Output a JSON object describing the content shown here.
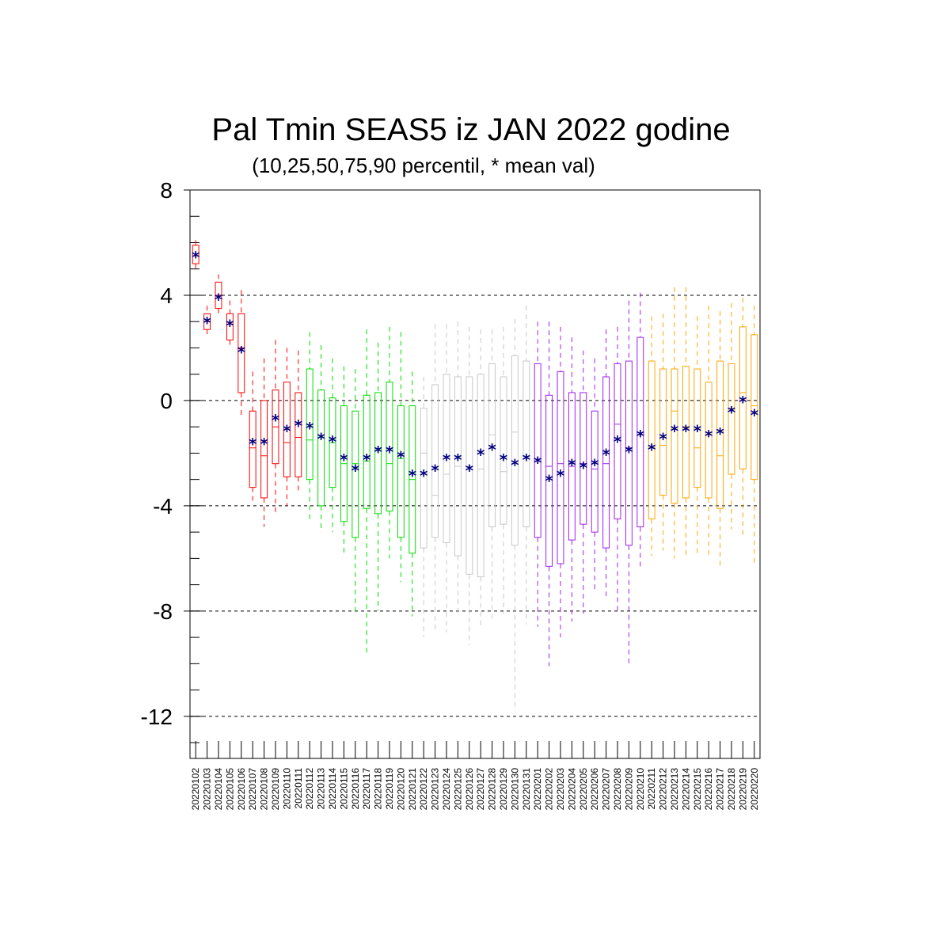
{
  "chart_data": {
    "type": "box",
    "title": "Pal Tmin SEAS5 iz JAN 2022 godine",
    "subtitle": "(10,25,50,75,90 percentil, * mean val)",
    "xlabel": "",
    "ylabel": "",
    "ylim": [
      -13.6,
      8
    ],
    "yticks": [
      8,
      4,
      0,
      -4,
      -8,
      -12
    ],
    "ytick_labels": [
      "8",
      "4",
      "0",
      "-4",
      "-8",
      "-12"
    ],
    "grid": "horizontal dashed at labeled ticks",
    "categories": [
      "20220102",
      "20220103",
      "20220104",
      "20220105",
      "20220106",
      "20220107",
      "20220108",
      "20220109",
      "20220110",
      "20220111",
      "20220112",
      "20220113",
      "20220114",
      "20220115",
      "20220116",
      "20220117",
      "20220118",
      "20220119",
      "20220120",
      "20220121",
      "20220122",
      "20220123",
      "20220124",
      "20220125",
      "20220126",
      "20220127",
      "20220128",
      "20220129",
      "20220130",
      "20220131",
      "20220201",
      "20220202",
      "20220203",
      "20220204",
      "20220205",
      "20220206",
      "20220207",
      "20220208",
      "20220209",
      "20220210",
      "20220211",
      "20220212",
      "20220213",
      "20220214",
      "20220215",
      "20220216",
      "20220217",
      "20220218",
      "20220219",
      "20220220"
    ],
    "colors": [
      "#ff0000",
      "#ff0000",
      "#ff0000",
      "#ff0000",
      "#ff0000",
      "#ff0000",
      "#ff0000",
      "#ff0000",
      "#ff0000",
      "#ff0000",
      "#00dd00",
      "#00dd00",
      "#00dd00",
      "#00dd00",
      "#00dd00",
      "#00dd00",
      "#00dd00",
      "#00dd00",
      "#00dd00",
      "#00dd00",
      "#c8c8c8",
      "#c8c8c8",
      "#c8c8c8",
      "#c8c8c8",
      "#c8c8c8",
      "#c8c8c8",
      "#c8c8c8",
      "#c8c8c8",
      "#c8c8c8",
      "#c8c8c8",
      "#a020f0",
      "#a020f0",
      "#a020f0",
      "#a020f0",
      "#a020f0",
      "#a020f0",
      "#a020f0",
      "#a020f0",
      "#a020f0",
      "#a020f0",
      "#ffa500",
      "#ffa500",
      "#ffa500",
      "#ffa500",
      "#ffa500",
      "#ffa500",
      "#ffa500",
      "#ffa500",
      "#ffa500",
      "#ffa500"
    ],
    "mean_color": "#000080",
    "p10": [
      5.0,
      2.4,
      3.3,
      2.0,
      -0.6,
      -3.8,
      -4.8,
      -4.3,
      -4.0,
      -3.5,
      -4.6,
      -5.0,
      -5.0,
      -5.8,
      -8.1,
      -9.7,
      -8.0,
      -6.0,
      -6.9,
      -8.2,
      -9.0,
      -8.7,
      -8.8,
      -8.2,
      -9.3,
      -8.6,
      -8.3,
      -8.1,
      -11.8,
      -8.5,
      -8.6,
      -10.1,
      -9.0,
      -8.4,
      -8.1,
      -7.3,
      -7.5,
      -8.1,
      -10.0,
      -6.3,
      -5.9,
      -5.7,
      -6.0,
      -6.0,
      -5.8,
      -6.0,
      -6.3,
      -4.9,
      -5.2,
      -6.2
    ],
    "p25": [
      5.2,
      2.7,
      3.5,
      2.3,
      0.3,
      -3.3,
      -3.7,
      -2.4,
      -2.9,
      -2.9,
      -3.0,
      -4.0,
      -3.3,
      -4.6,
      -5.2,
      -4.1,
      -4.3,
      -4.2,
      -5.2,
      -5.8,
      -5.6,
      -5.2,
      -5.4,
      -5.9,
      -6.6,
      -6.7,
      -4.8,
      -4.7,
      -5.5,
      -4.8,
      -5.2,
      -6.3,
      -6.2,
      -5.3,
      -4.7,
      -5.0,
      -5.6,
      -4.5,
      -5.5,
      -4.8,
      -4.5,
      -3.6,
      -3.9,
      -3.7,
      -3.3,
      -3.7,
      -4.1,
      -2.8,
      -2.6,
      -3.0
    ],
    "p50": [
      5.5,
      3.0,
      4.0,
      2.9,
      2.0,
      -1.8,
      -2.1,
      -1.0,
      -1.6,
      -1.4,
      -1.5,
      -1.4,
      -1.6,
      -2.4,
      -2.4,
      -2.3,
      -1.9,
      -2.4,
      -2.2,
      -3.0,
      -2.0,
      -3.6,
      -2.8,
      -2.5,
      -2.5,
      -2.6,
      -1.3,
      -2.7,
      -1.2,
      -2.2,
      -2.3,
      -2.5,
      -2.4,
      -2.5,
      -2.4,
      -2.6,
      -2.4,
      -0.9,
      -1.8,
      -1.3,
      -1.8,
      -1.7,
      -0.4,
      -1.0,
      -1.8,
      -1.3,
      -2.1,
      -0.3,
      0.3,
      -0.2
    ],
    "p75": [
      5.9,
      3.3,
      4.5,
      3.3,
      3.3,
      -0.4,
      0.0,
      0.4,
      0.7,
      0.3,
      1.2,
      0.4,
      0.1,
      -0.2,
      -0.4,
      0.2,
      0.3,
      0.7,
      -0.2,
      -0.2,
      -0.3,
      0.6,
      1.0,
      0.9,
      0.9,
      1.0,
      1.4,
      0.9,
      1.7,
      1.5,
      1.4,
      0.2,
      1.1,
      0.3,
      0.3,
      -0.4,
      0.9,
      1.4,
      1.5,
      2.4,
      1.5,
      1.2,
      1.2,
      1.3,
      1.2,
      0.7,
      1.5,
      1.4,
      2.8,
      2.5
    ],
    "p90": [
      6.1,
      3.6,
      4.8,
      3.8,
      4.2,
      1.1,
      1.6,
      2.3,
      2.0,
      1.9,
      2.6,
      2.1,
      1.6,
      1.3,
      1.2,
      2.7,
      2.2,
      2.8,
      2.6,
      1.1,
      0.9,
      2.9,
      2.9,
      3.0,
      2.8,
      2.7,
      2.7,
      2.8,
      3.1,
      3.6,
      3.0,
      3.0,
      2.8,
      2.4,
      1.9,
      1.6,
      2.7,
      2.8,
      3.8,
      4.1,
      3.2,
      3.3,
      4.3,
      4.3,
      3.2,
      3.6,
      3.4,
      3.7,
      3.9,
      3.6
    ],
    "mean": [
      5.5,
      3.0,
      3.9,
      2.9,
      1.9,
      -1.6,
      -1.6,
      -0.7,
      -1.1,
      -0.9,
      -1.0,
      -1.4,
      -1.5,
      -2.2,
      -2.6,
      -2.2,
      -1.9,
      -1.9,
      -2.1,
      -2.8,
      -2.8,
      -2.6,
      -2.2,
      -2.2,
      -2.6,
      -2.0,
      -1.8,
      -2.2,
      -2.4,
      -2.2,
      -2.3,
      -3.0,
      -2.8,
      -2.4,
      -2.5,
      -2.4,
      -2.0,
      -1.5,
      -1.9,
      -1.3,
      -1.8,
      -1.4,
      -1.1,
      -1.1,
      -1.1,
      -1.3,
      -1.2,
      -0.4,
      0.0,
      -0.5
    ]
  }
}
